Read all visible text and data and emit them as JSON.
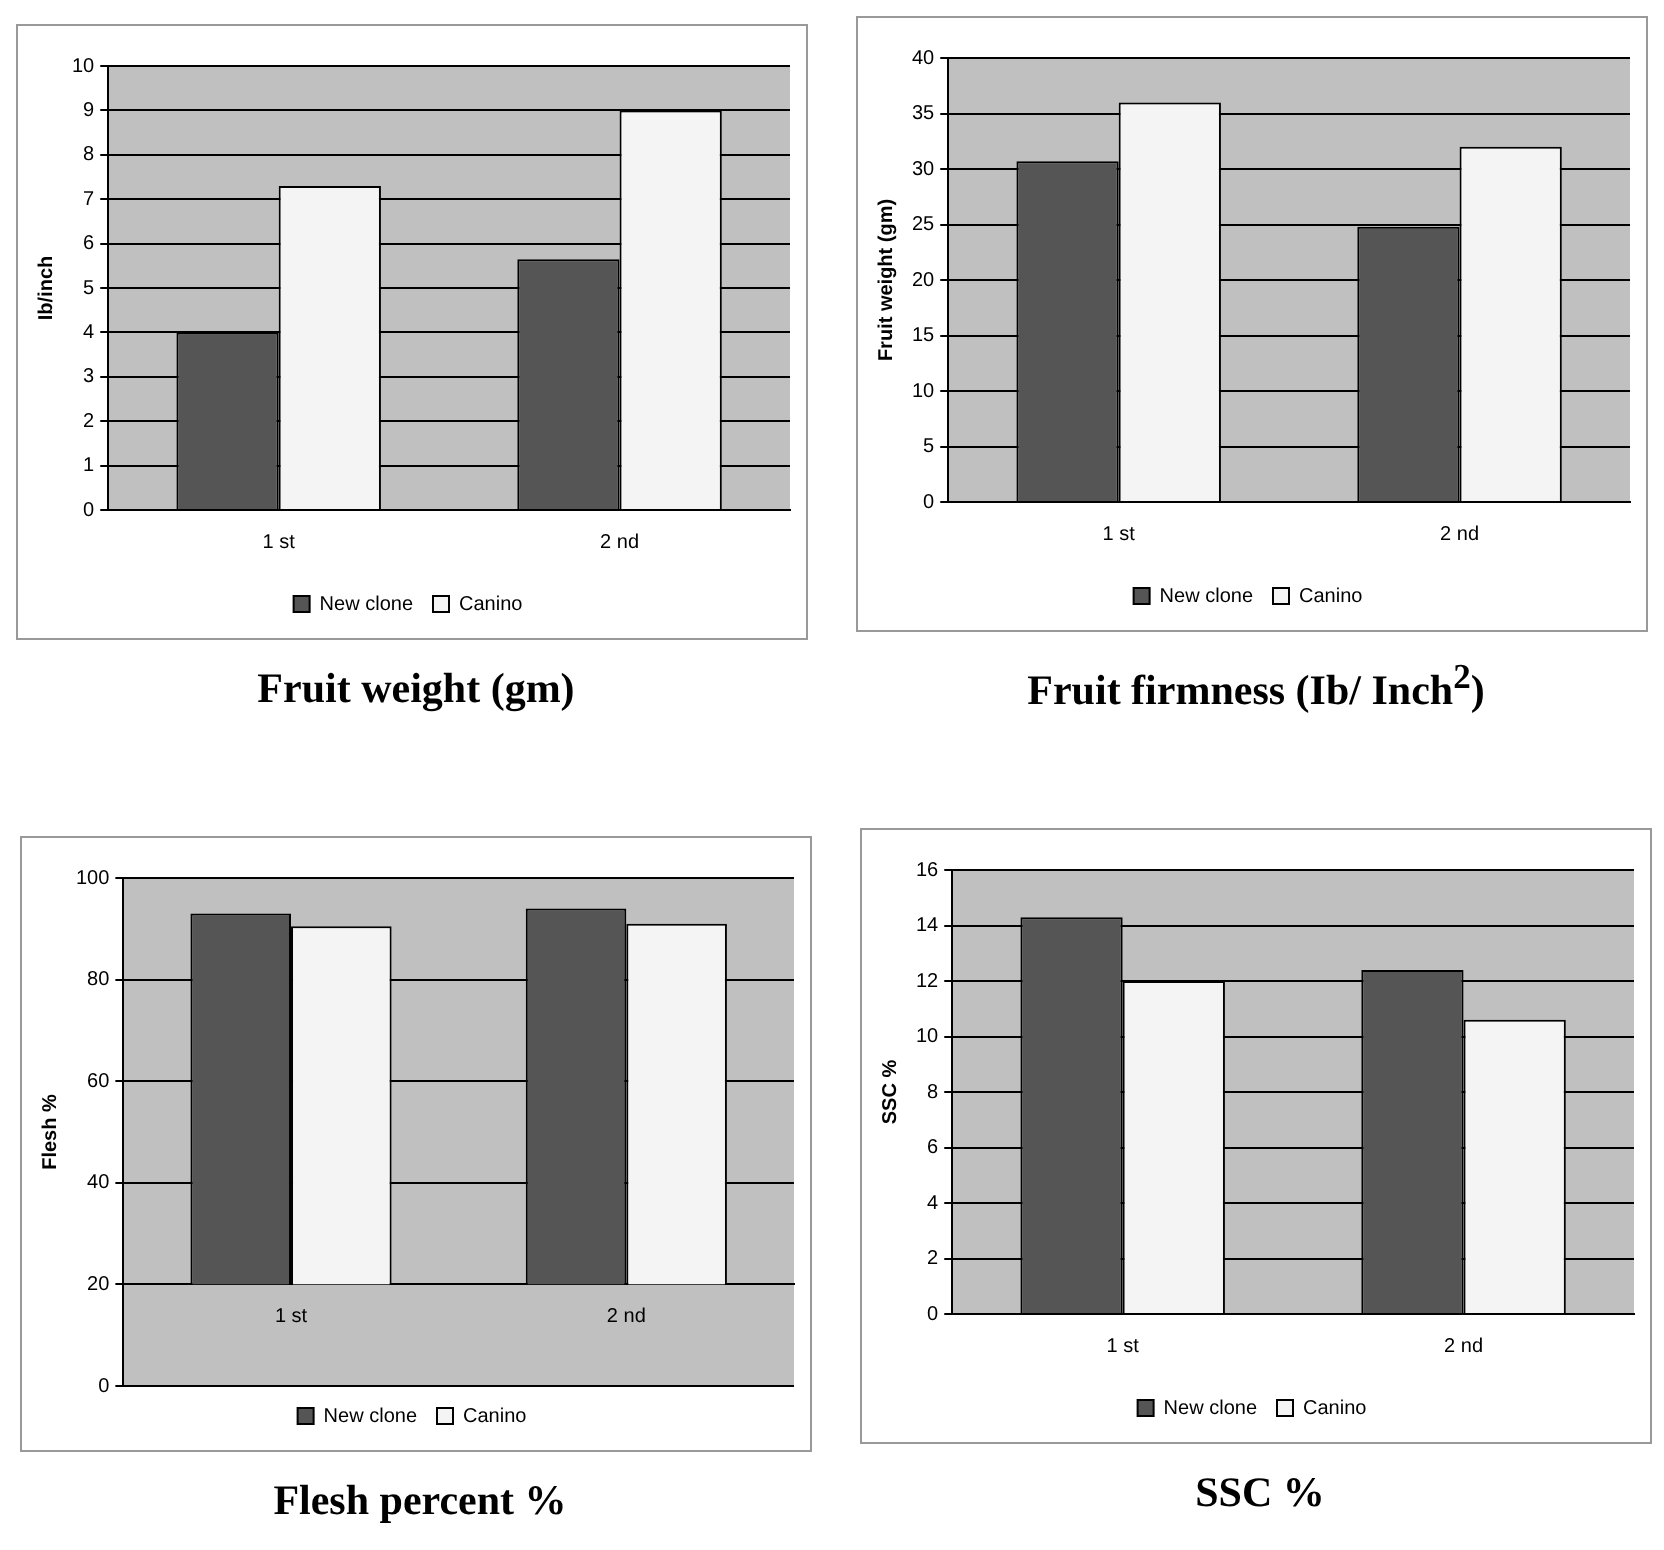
{
  "chart_data": [
    {
      "type": "bar",
      "title": "Fruit weight (gm)",
      "ylabel": "Ib/inch",
      "categories": [
        "1 st",
        "2 nd"
      ],
      "series": [
        {
          "name": "New clone",
          "color": "#555555",
          "values": [
            4.0,
            5.65
          ]
        },
        {
          "name": "Canino",
          "color": "#f4f4f4",
          "values": [
            7.3,
            9.0
          ]
        }
      ],
      "ylim": [
        0,
        10
      ],
      "yticks": [
        0,
        1,
        2,
        3,
        4,
        5,
        6,
        7,
        8,
        9,
        10
      ],
      "grid": "y",
      "legend": "bottom"
    },
    {
      "type": "bar",
      "title": "Fruit firmness (Ib/ Inch$^{2}$)",
      "ylabel": "Fruit weight (gm)",
      "categories": [
        "1 st",
        "2 nd"
      ],
      "series": [
        {
          "name": "New clone",
          "color": "#555555",
          "values": [
            30.7,
            24.8
          ]
        },
        {
          "name": "Canino",
          "color": "#f4f4f4",
          "values": [
            36,
            32
          ]
        }
      ],
      "ylim": [
        0,
        40
      ],
      "yticks": [
        0,
        5,
        10,
        15,
        20,
        25,
        30,
        35,
        40
      ],
      "grid": "y",
      "legend": "bottom"
    },
    {
      "type": "bar",
      "title": "Flesh percent %",
      "ylabel": "Flesh %",
      "categories": [
        "1 st",
        "2 nd"
      ],
      "series": [
        {
          "name": "New clone",
          "color": "#555555",
          "base": [
            20,
            20
          ],
          "values": [
            73,
            74
          ]
        },
        {
          "name": "Canino",
          "color": "#f4f4f4",
          "base": [
            20,
            20
          ],
          "values": [
            70.5,
            71
          ]
        }
      ],
      "ylim": [
        0,
        100
      ],
      "yticks": [
        0,
        20,
        40,
        60,
        80,
        100
      ],
      "grid": "y",
      "legend": "bottom"
    },
    {
      "type": "bar",
      "title": "SSC %",
      "ylabel": "SSC %",
      "categories": [
        "1 st",
        "2 nd"
      ],
      "series": [
        {
          "name": "New clone",
          "color": "#555555",
          "values": [
            14.3,
            12.4
          ]
        },
        {
          "name": "Canino",
          "color": "#f4f4f4",
          "values": [
            12.0,
            10.6
          ]
        }
      ],
      "ylim": [
        0,
        16
      ],
      "yticks": [
        0,
        2,
        4,
        6,
        8,
        10,
        12,
        14,
        16
      ],
      "grid": "y",
      "legend": "bottom"
    }
  ]
}
